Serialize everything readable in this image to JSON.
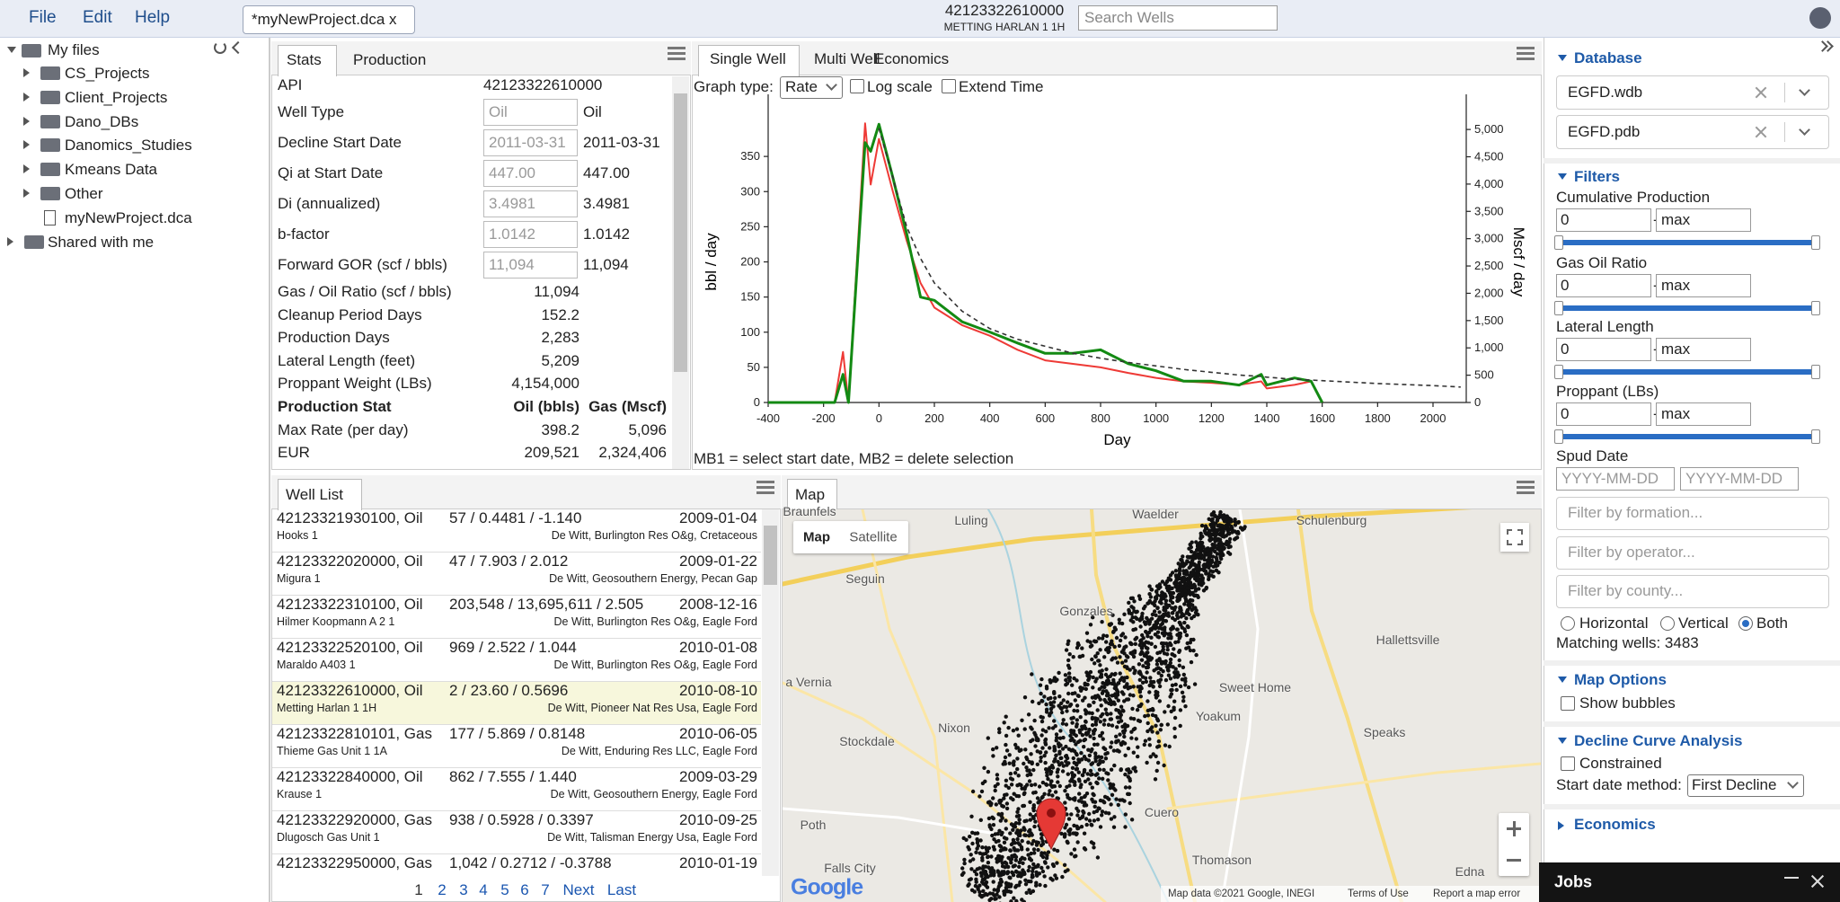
{
  "menu": [
    "File",
    "Edit",
    "Help"
  ],
  "file_tab": "*myNewProject.dca x",
  "header": {
    "api": "42123322610000",
    "well": "METTING HARLAN 1 1H",
    "search_placeholder": "Search Wells"
  },
  "file_tree": {
    "root": "My files",
    "folders": [
      "CS_Projects",
      "Client_Projects",
      "Dano_DBs",
      "Danomics_Studies",
      "Kmeans Data",
      "Other"
    ],
    "file": "myNewProject.dca",
    "shared": "Shared with me"
  },
  "stats": {
    "tabs": [
      "Stats",
      "Production"
    ],
    "api": {
      "label": "API",
      "value": "42123322610000"
    },
    "input_rows": [
      {
        "label": "Well Type",
        "input": "Oil",
        "value": "Oil"
      },
      {
        "label": "Decline Start Date",
        "input": "2011-03-31",
        "value": "2011-03-31"
      },
      {
        "label": "Qi at Start Date",
        "input": "447.00",
        "value": "447.00"
      },
      {
        "label": "Di (annualized)",
        "input": "3.4981",
        "value": "3.4981"
      },
      {
        "label": "b-factor",
        "input": "1.0142",
        "value": "1.0142"
      },
      {
        "label": "Forward GOR (scf / bbls)",
        "input": "11,094",
        "value": "11,094"
      }
    ],
    "plain_rows": [
      {
        "label": "Gas / Oil Ratio (scf / bbls)",
        "value": "11,094"
      },
      {
        "label": "Cleanup Period Days",
        "value": "152.2"
      },
      {
        "label": "Production Days",
        "value": "2,283"
      },
      {
        "label": "Lateral Length (feet)",
        "value": "5,209"
      },
      {
        "label": "Proppant Weight (LBs)",
        "value": "4,154,000"
      }
    ],
    "production_header": [
      "Production Stat",
      "Oil (bbls)",
      "Gas (Mscf)"
    ],
    "production_rows": [
      [
        "Max Rate (per day)",
        "398.2",
        "5,096"
      ],
      [
        "EUR",
        "209,521",
        "2,324,406"
      ]
    ]
  },
  "chart_tabs": [
    "Single Well",
    "Multi Well",
    "Economics"
  ],
  "chart_controls": {
    "graph_type": "Graph type:",
    "rate": "Rate",
    "log_scale": "Log scale",
    "extend_time": "Extend Time"
  },
  "chart_data": {
    "type": "line",
    "x_label": "Day",
    "y_label": "bbl / day",
    "y2_label": "Mscf / day",
    "log_scale": false,
    "x": [
      -400,
      -300,
      -200,
      -160,
      -130,
      -110,
      -50,
      -30,
      0,
      50,
      100,
      150,
      200,
      300,
      400,
      500,
      600,
      700,
      800,
      900,
      1000,
      1100,
      1200,
      1300,
      1380,
      1400,
      1500,
      1560,
      1600,
      1800,
      2000,
      2100
    ],
    "series": [
      {
        "color": "#ee3a36",
        "values": [
          0,
          0,
          0,
          0,
          72,
          0,
          397,
          310,
          375,
          300,
          230,
          170,
          135,
          110,
          95,
          75,
          60,
          55,
          50,
          42,
          35,
          30,
          28,
          25,
          30,
          20,
          25,
          30,
          0,
          null,
          null,
          null
        ]
      },
      {
        "color": "#138a13",
        "axis": "y2",
        "values": [
          0,
          0,
          0,
          0,
          515,
          0,
          4760,
          4600,
          5096,
          4120,
          3090,
          1930,
          1870,
          1480,
          1290,
          1090,
          900,
          900,
          965,
          710,
          580,
          390,
          390,
          320,
          515,
          320,
          450,
          390,
          0,
          null,
          null,
          null
        ]
      },
      {
        "color": "#333333",
        "dashed": true,
        "values": [
          null,
          null,
          null,
          null,
          null,
          null,
          null,
          null,
          390,
          320,
          250,
          205,
          170,
          130,
          105,
          90,
          80,
          70,
          63,
          57,
          52,
          47,
          43,
          39,
          37,
          36,
          33,
          32,
          31,
          27,
          24,
          22
        ]
      }
    ],
    "xlim": [
      -400,
      2120
    ],
    "xticks": [
      -400,
      -200,
      0,
      200,
      400,
      600,
      800,
      1000,
      1200,
      1400,
      1600,
      1800,
      2000
    ],
    "ylim": [
      0,
      400
    ],
    "yticks": [
      0,
      50,
      100,
      150,
      200,
      250,
      300,
      350
    ],
    "y2lim": [
      0,
      5150
    ],
    "y2ticks": [
      0,
      500,
      {
        "value": 1000,
        "label": "1,000"
      },
      {
        "value": 1500,
        "label": "1,500"
      },
      {
        "value": 2000,
        "label": "2,000"
      },
      {
        "value": 2500,
        "label": "2,500"
      },
      {
        "value": 3000,
        "label": "3,000"
      },
      {
        "value": 3500,
        "label": "3,500"
      },
      {
        "value": 4000,
        "label": "4,000"
      },
      {
        "value": 4500,
        "label": "4,500"
      },
      {
        "value": 5000,
        "label": "5,000"
      }
    ]
  },
  "chart_footer": "MB1 = select start date, MB2 = delete selection",
  "well_list": {
    "title": "Well List",
    "rows": [
      {
        "id": "42123321930100, Oil",
        "stats": "57 / 0.4481 / -1.140",
        "date": "2009-01-04",
        "name": "Hooks 1",
        "location": "De Witt, Burlington Res O&g, Cretaceous"
      },
      {
        "id": "42123322020000, Oil",
        "stats": "47 / 7.903 / 2.012",
        "date": "2009-01-22",
        "name": "Migura 1",
        "location": "De Witt, Geosouthern Energy, Pecan Gap"
      },
      {
        "id": "42123322310100, Oil",
        "stats": "203,548 / 13,695,611 / 2.505",
        "date": "2008-12-16",
        "name": "Hilmer Koopmann A 2 1",
        "location": "De Witt, Burlington Res O&g, Eagle Ford"
      },
      {
        "id": "42123322520100, Oil",
        "stats": "969 / 2.522 / 1.044",
        "date": "2010-01-08",
        "name": "Maraldo A403 1",
        "location": "De Witt, Burlington Res O&g, Eagle Ford"
      },
      {
        "id": "42123322610000, Oil",
        "stats": "2 / 23.60 / 0.5696",
        "date": "2010-08-10",
        "name": "Metting Harlan 1 1H",
        "location": "De Witt, Pioneer Nat Res Usa, Eagle Ford"
      },
      {
        "id": "42123322810101, Gas",
        "stats": "177 / 5.869 / 0.8148",
        "date": "2010-06-05",
        "name": "Thieme Gas Unit 1 1A",
        "location": "De Witt, Enduring Res LLC, Eagle Ford"
      },
      {
        "id": "42123322840000, Oil",
        "stats": "862 / 7.555 / 1.440",
        "date": "2009-03-29",
        "name": "Krause 1",
        "location": "De Witt, Geosouthern Energy, Eagle Ford"
      },
      {
        "id": "42123322920000, Gas",
        "stats": "938 / 0.5928 / 0.3397",
        "date": "2010-09-25",
        "name": "Dlugosch Gas Unit 1",
        "location": "De Witt, Talisman Energy Usa, Eagle Ford"
      },
      {
        "id": "42123322950000, Gas",
        "stats": "1,042 / 0.2712 / -0.3788",
        "date": "2010-01-19"
      }
    ],
    "pages": [
      "1",
      "2",
      "3",
      "4",
      "5",
      "6",
      "7",
      "Next",
      "Last"
    ]
  },
  "map": {
    "tab": "Map",
    "buttons": [
      "Map",
      "Satellite"
    ],
    "places": [
      "Braunfels",
      "Luling",
      "Waelder",
      "Schulenburg",
      "Seguin",
      "Gonzales",
      "Hallettsville",
      "a Vernia",
      "Sweet Home",
      "Yoakum",
      "Nixon",
      "Stockdale",
      "Speaks",
      "Cuero",
      "Poth",
      "Thomason",
      "Falls City",
      "Edna"
    ],
    "logo": "Google",
    "attribution": [
      "Map data ©2021 Google, INEGI",
      "Terms of Use",
      "Report a map error"
    ]
  },
  "sidebar": {
    "database": {
      "title": "Database",
      "items": [
        "EGFD.wdb",
        "EGFD.pdb"
      ]
    },
    "filters": {
      "title": "Filters",
      "ranges": [
        {
          "label": "Cumulative Production",
          "min": "0",
          "max": "max"
        },
        {
          "label": "Gas Oil Ratio",
          "min": "0",
          "max": "max"
        },
        {
          "label": "Lateral Length",
          "min": "0",
          "max": "max"
        },
        {
          "label": "Proppant (LBs)",
          "min": "0",
          "max": "max"
        }
      ],
      "separator": "-",
      "spud_date": {
        "label": "Spud Date",
        "placeholders": [
          "YYYY-MM-DD",
          "YYYY-MM-DD"
        ]
      },
      "text_filters": [
        "Filter by formation...",
        "Filter by operator...",
        "Filter by county..."
      ],
      "well_orientation": [
        "Horizontal",
        "Vertical",
        "Both"
      ],
      "matching_wells": "Matching wells: 3483"
    },
    "map_options": {
      "title": "Map Options",
      "show_bubbles": "Show bubbles"
    },
    "dca": {
      "title": "Decline Curve Analysis",
      "constrained": "Constrained",
      "start_method_label": "Start date method:",
      "start_method": "First Decline"
    },
    "economics": {
      "title": "Economics"
    }
  },
  "jobs": {
    "title": "Jobs"
  }
}
